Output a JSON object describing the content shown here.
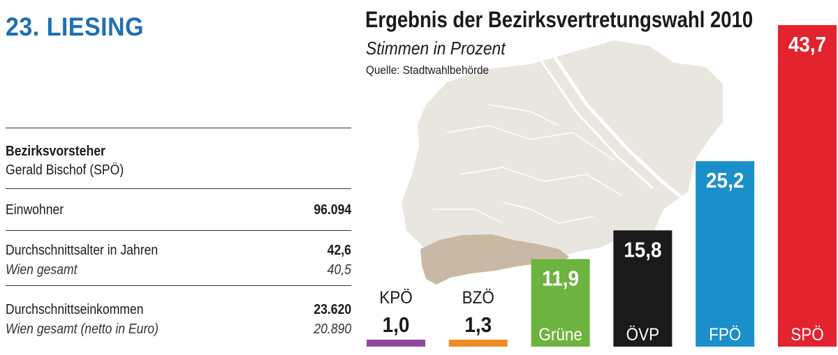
{
  "district": "23. LIESING",
  "info": {
    "head_label": "Bezirksvorsteher",
    "head_name": "Gerald Bischof  (SPÖ)",
    "inhabitants_label": "Einwohner",
    "inhabitants_value": "96.094",
    "age_label": "Durchschnittsalter in Jahren",
    "age_value": "42,6",
    "age_vienna_label": "Wien gesamt",
    "age_vienna_value": "40,5",
    "income_label": "Durchschnittseinkommen",
    "income_value": "23.620",
    "income_vienna_label": "Wien gesamt (netto in Euro)",
    "income_vienna_value": "20.890"
  },
  "chart_data": {
    "type": "bar",
    "title": "Ergebnis der Bezirksvertretungswahl 2010",
    "subtitle": "Stimmen in Prozent",
    "source": "Quelle: Stadtwahlbehörde",
    "categories": [
      "KPÖ",
      "BZÖ",
      "Grüne",
      "ÖVP",
      "FPÖ",
      "SPÖ"
    ],
    "values": [
      1.0,
      1.3,
      11.9,
      15.8,
      25.2,
      43.7
    ],
    "labels": [
      "1,0",
      "1,3",
      "11,9",
      "15,8",
      "25,2",
      "43,7"
    ],
    "colors": [
      "#8e4a9b",
      "#f08a24",
      "#6db33f",
      "#1a1a1a",
      "#1a8fc9",
      "#e3232d"
    ],
    "ylim": [
      0,
      43.7
    ],
    "grid": false
  },
  "colors": {
    "map": "#e9e5df",
    "district_highlight": "#c9b8a3",
    "district_text": "#1f6fb2"
  }
}
